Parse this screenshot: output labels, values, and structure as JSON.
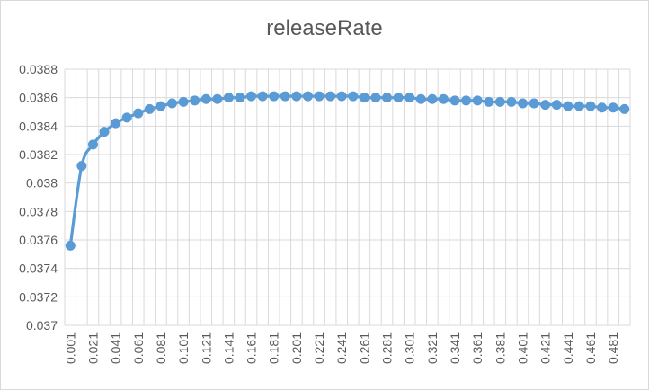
{
  "chart_data": {
    "type": "line",
    "title": "releaseRate",
    "xlabel": "",
    "ylabel": "",
    "ylim": [
      0.037,
      0.0388
    ],
    "yticks": [
      "0.037",
      "0.0372",
      "0.0374",
      "0.0376",
      "0.0378",
      "0.038",
      "0.0382",
      "0.0384",
      "0.0386",
      "0.0388"
    ],
    "grid": true,
    "legend": "none",
    "x": [
      0.001,
      0.011,
      0.021,
      0.031,
      0.041,
      0.051,
      0.061,
      0.071,
      0.081,
      0.091,
      0.101,
      0.111,
      0.121,
      0.131,
      0.141,
      0.151,
      0.161,
      0.171,
      0.181,
      0.191,
      0.201,
      0.211,
      0.221,
      0.231,
      0.241,
      0.251,
      0.261,
      0.271,
      0.281,
      0.291,
      0.301,
      0.311,
      0.321,
      0.331,
      0.341,
      0.351,
      0.361,
      0.371,
      0.381,
      0.391,
      0.401,
      0.411,
      0.421,
      0.431,
      0.441,
      0.451,
      0.461,
      0.471,
      0.481,
      0.491
    ],
    "xticklabels": [
      "0.001",
      "0.021",
      "0.041",
      "0.061",
      "0.081",
      "0.101",
      "0.121",
      "0.141",
      "0.161",
      "0.181",
      "0.201",
      "0.221",
      "0.241",
      "0.261",
      "0.281",
      "0.301",
      "0.321",
      "0.341",
      "0.361",
      "0.381",
      "0.401",
      "0.421",
      "0.441",
      "0.461",
      "0.481"
    ],
    "series": [
      {
        "color": "#5b9bd5",
        "values": [
          0.03756,
          0.03812,
          0.03827,
          0.03836,
          0.03842,
          0.03846,
          0.03849,
          0.03852,
          0.03854,
          0.03856,
          0.03857,
          0.03858,
          0.03859,
          0.03859,
          0.0386,
          0.0386,
          0.03861,
          0.03861,
          0.03861,
          0.03861,
          0.03861,
          0.03861,
          0.03861,
          0.03861,
          0.03861,
          0.03861,
          0.0386,
          0.0386,
          0.0386,
          0.0386,
          0.0386,
          0.03859,
          0.03859,
          0.03859,
          0.03858,
          0.03858,
          0.03858,
          0.03857,
          0.03857,
          0.03857,
          0.03856,
          0.03856,
          0.03855,
          0.03855,
          0.03854,
          0.03854,
          0.03854,
          0.03853,
          0.03853,
          0.03852
        ]
      }
    ]
  }
}
